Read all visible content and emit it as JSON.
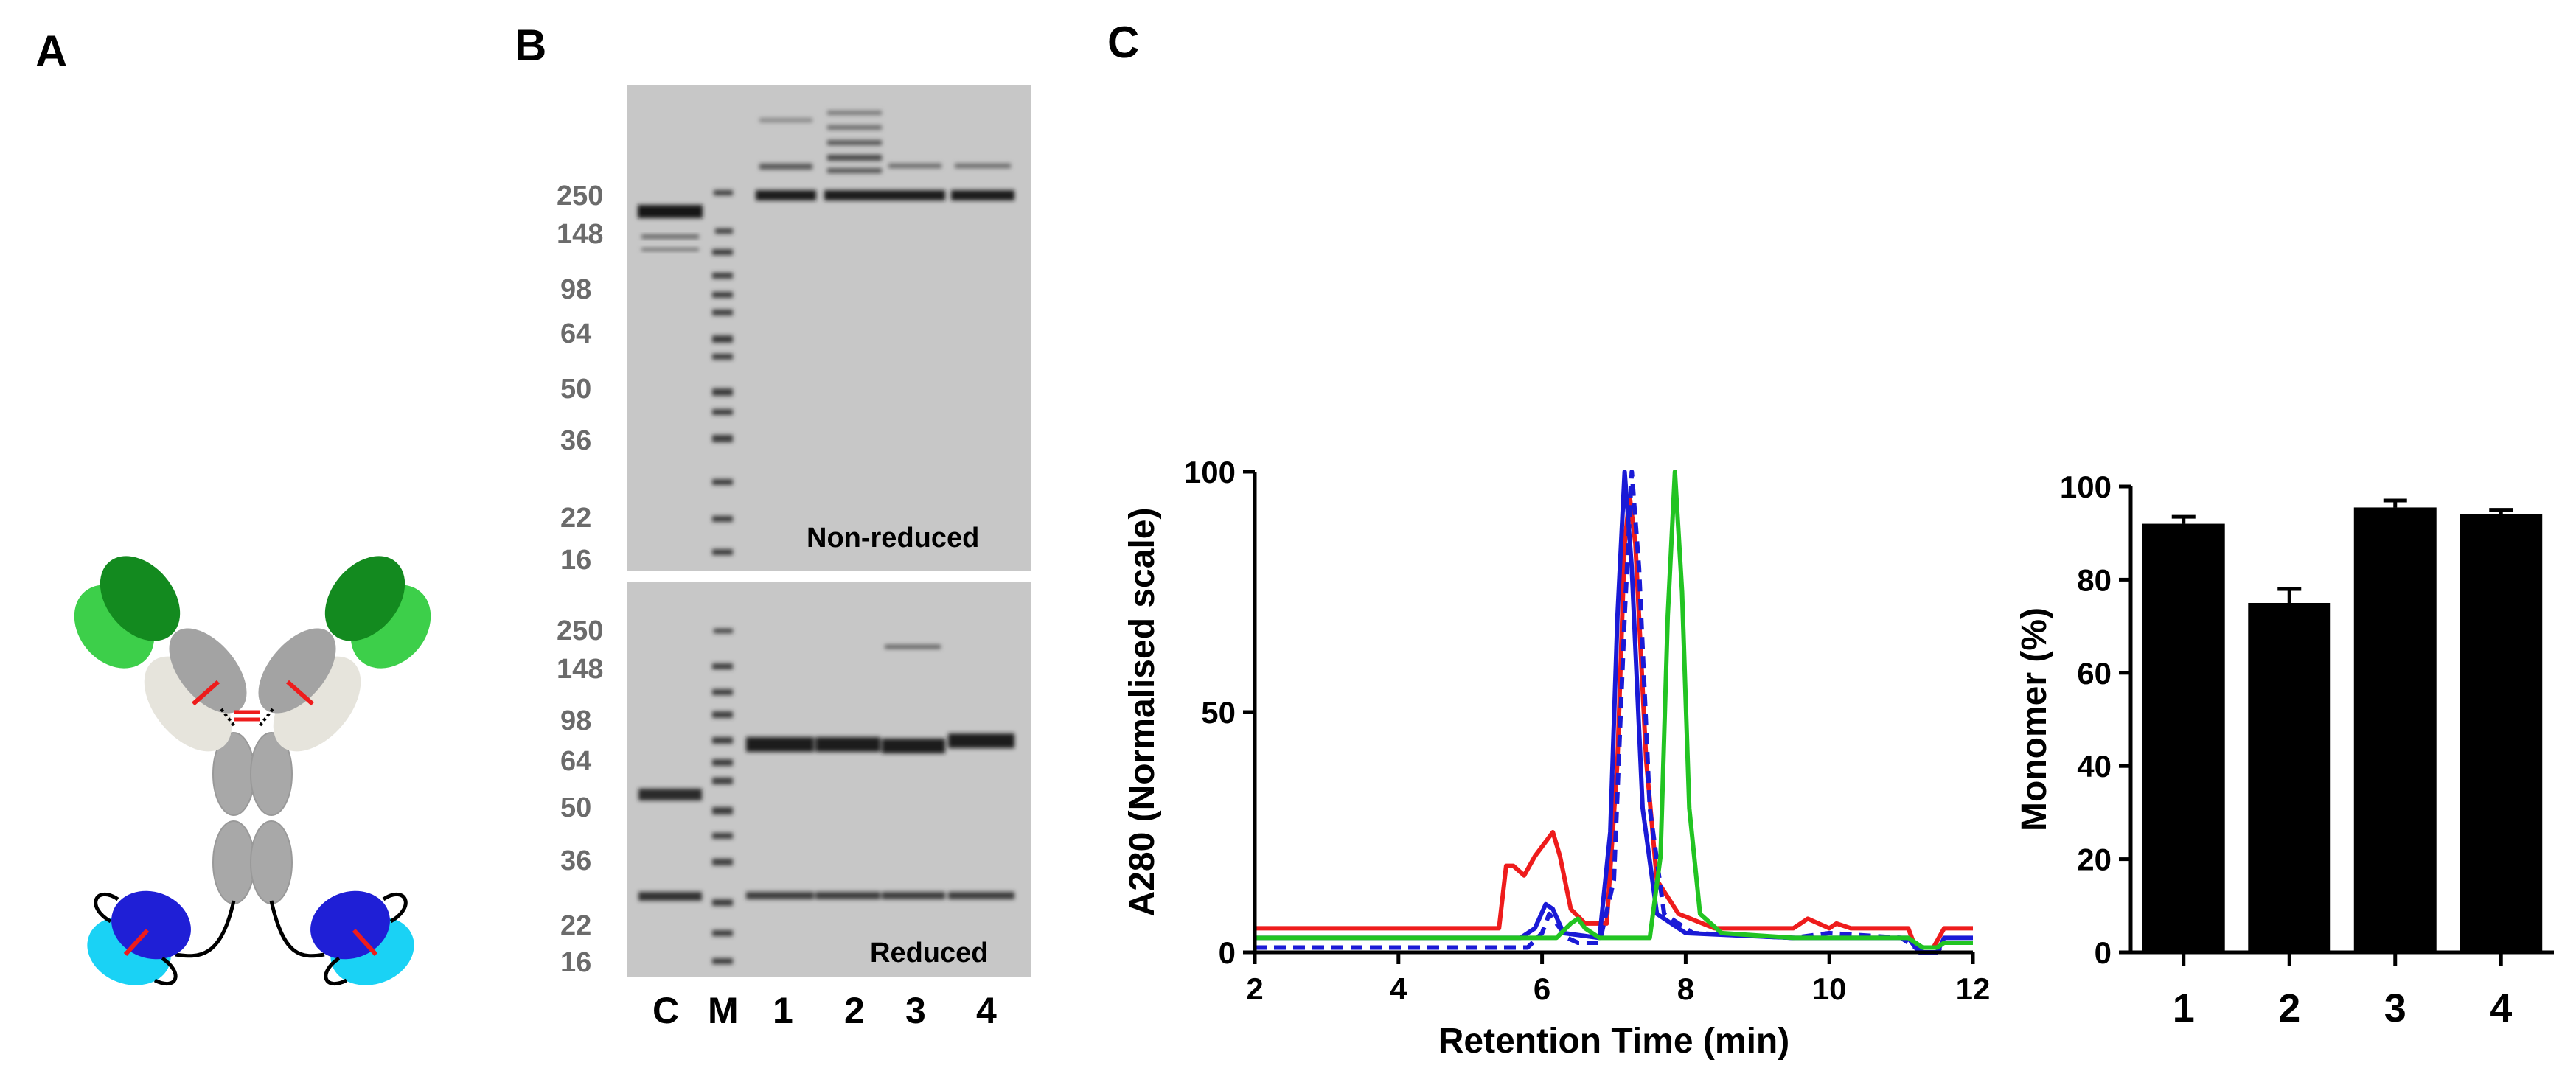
{
  "panels": {
    "a": "A",
    "b": "B",
    "c": "C"
  },
  "gel": {
    "nonreduced_caption": "Non-reduced",
    "reduced_caption": "Reduced",
    "nonreduced_markers": [
      "250",
      "148",
      "98",
      "64",
      "50",
      "36",
      "22",
      "16"
    ],
    "reduced_markers": [
      "250",
      "148",
      "98",
      "64",
      "50",
      "36",
      "22",
      "16"
    ],
    "lanes": [
      "C",
      "M",
      "1",
      "2",
      "3",
      "4"
    ]
  },
  "chart_data": [
    {
      "type": "line",
      "title": "",
      "xlabel": "Retention Time (min)",
      "ylabel": "A280 (Normalised scale)",
      "xlim": [
        2,
        12
      ],
      "ylim": [
        0,
        100
      ],
      "xticks": [
        "2",
        "4",
        "6",
        "8",
        "10",
        "12"
      ],
      "yticks": [
        "0",
        "50",
        "100"
      ],
      "series": [
        {
          "color": "#ee1c1c",
          "style": "solid",
          "points": [
            [
              2,
              5
            ],
            [
              5.4,
              5
            ],
            [
              5.5,
              18
            ],
            [
              5.6,
              18
            ],
            [
              5.75,
              16
            ],
            [
              5.9,
              20
            ],
            [
              6.05,
              23
            ],
            [
              6.15,
              25
            ],
            [
              6.25,
              20
            ],
            [
              6.4,
              9
            ],
            [
              6.6,
              6
            ],
            [
              6.9,
              6
            ],
            [
              7.05,
              40
            ],
            [
              7.15,
              85
            ],
            [
              7.22,
              95
            ],
            [
              7.3,
              85
            ],
            [
              7.45,
              40
            ],
            [
              7.6,
              15
            ],
            [
              7.9,
              8
            ],
            [
              8.4,
              5
            ],
            [
              9.5,
              5
            ],
            [
              9.7,
              7
            ],
            [
              9.85,
              6
            ],
            [
              10.0,
              5
            ],
            [
              10.1,
              6
            ],
            [
              10.3,
              5
            ],
            [
              11.1,
              5
            ],
            [
              11.2,
              1
            ],
            [
              11.45,
              1
            ],
            [
              11.6,
              5
            ],
            [
              11.8,
              5
            ],
            [
              12,
              5
            ]
          ]
        },
        {
          "color": "#1a1ad6",
          "style": "solid",
          "points": [
            [
              2,
              3
            ],
            [
              5.7,
              3
            ],
            [
              5.9,
              5
            ],
            [
              6.05,
              10
            ],
            [
              6.15,
              9
            ],
            [
              6.3,
              4
            ],
            [
              6.8,
              3
            ],
            [
              6.95,
              25
            ],
            [
              7.05,
              70
            ],
            [
              7.15,
              100
            ],
            [
              7.25,
              80
            ],
            [
              7.4,
              30
            ],
            [
              7.6,
              8
            ],
            [
              8.0,
              4
            ],
            [
              9.5,
              3
            ],
            [
              11.1,
              3
            ],
            [
              11.25,
              0
            ],
            [
              11.5,
              0
            ],
            [
              11.6,
              3
            ],
            [
              12,
              3
            ]
          ]
        },
        {
          "color": "#1a1ad6",
          "style": "dashed",
          "points": [
            [
              2,
              1
            ],
            [
              5.8,
              1
            ],
            [
              6.0,
              4
            ],
            [
              6.1,
              8
            ],
            [
              6.2,
              6
            ],
            [
              6.35,
              3
            ],
            [
              6.5,
              2
            ],
            [
              6.8,
              2
            ],
            [
              7.0,
              15
            ],
            [
              7.15,
              70
            ],
            [
              7.25,
              100
            ],
            [
              7.35,
              80
            ],
            [
              7.5,
              30
            ],
            [
              7.7,
              8
            ],
            [
              8.1,
              4
            ],
            [
              9.5,
              3
            ],
            [
              10.0,
              4
            ],
            [
              11.0,
              3
            ],
            [
              11.3,
              0
            ],
            [
              11.5,
              0
            ],
            [
              11.6,
              2
            ],
            [
              12,
              2
            ]
          ]
        },
        {
          "color": "#22c422",
          "style": "solid",
          "points": [
            [
              2,
              3
            ],
            [
              6.2,
              3
            ],
            [
              6.4,
              6
            ],
            [
              6.5,
              7
            ],
            [
              6.6,
              5
            ],
            [
              6.8,
              3
            ],
            [
              7.5,
              3
            ],
            [
              7.65,
              20
            ],
            [
              7.75,
              70
            ],
            [
              7.85,
              100
            ],
            [
              7.95,
              75
            ],
            [
              8.05,
              30
            ],
            [
              8.2,
              8
            ],
            [
              8.5,
              4
            ],
            [
              9.5,
              3
            ],
            [
              11.1,
              3
            ],
            [
              11.3,
              1
            ],
            [
              11.5,
              1
            ],
            [
              11.6,
              2
            ],
            [
              12,
              2
            ]
          ]
        }
      ]
    },
    {
      "type": "bar",
      "title": "",
      "xlabel": "",
      "ylabel": "Monomer (%)",
      "ylim": [
        0,
        100
      ],
      "yticks": [
        "0",
        "20",
        "40",
        "60",
        "80",
        "100"
      ],
      "categories": [
        "1",
        "2",
        "3",
        "4"
      ],
      "values": [
        92,
        75,
        95.5,
        94
      ],
      "errors": [
        1.5,
        3,
        1.5,
        1
      ],
      "color": "#000000"
    }
  ]
}
